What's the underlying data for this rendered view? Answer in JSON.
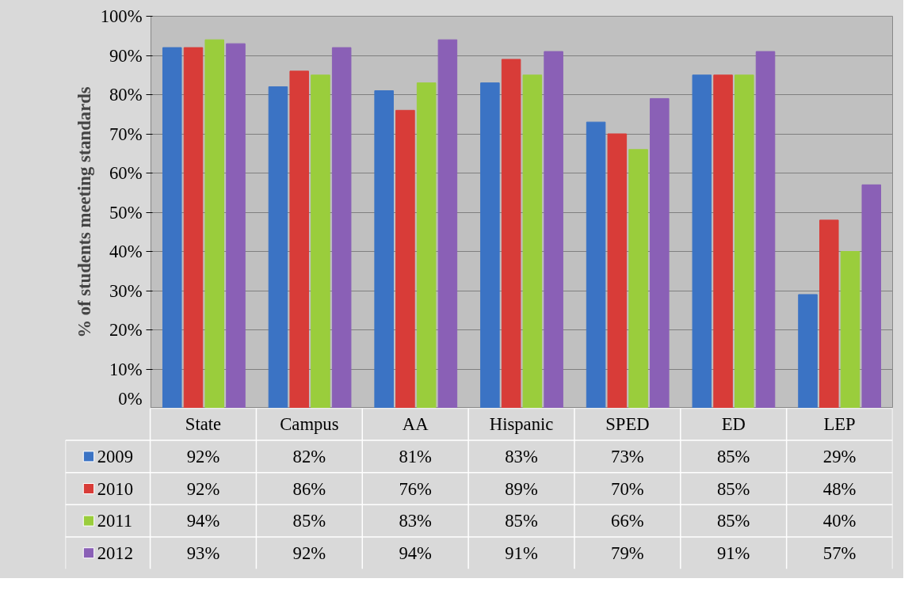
{
  "chart_data": {
    "type": "bar",
    "ylabel": "% of students meeting standards",
    "categories": [
      "State",
      "Campus",
      "AA",
      "Hispanic",
      "SPED",
      "ED",
      "LEP"
    ],
    "series": [
      {
        "name": "2009",
        "color": "#3b73c4",
        "values": [
          92,
          82,
          81,
          83,
          73,
          85,
          29
        ],
        "value_labels": [
          "92%",
          "82%",
          "81%",
          "83%",
          "73%",
          "85%",
          "29%"
        ]
      },
      {
        "name": "2010",
        "color": "#d83c38",
        "values": [
          92,
          86,
          76,
          89,
          70,
          85,
          48
        ],
        "value_labels": [
          "92%",
          "86%",
          "76%",
          "89%",
          "70%",
          "85%",
          "48%"
        ]
      },
      {
        "name": "2011",
        "color": "#9acd3c",
        "values": [
          94,
          85,
          83,
          85,
          66,
          85,
          40
        ],
        "value_labels": [
          "94%",
          "85%",
          "83%",
          "85%",
          "66%",
          "85%",
          "40%"
        ]
      },
      {
        "name": "2012",
        "color": "#8a60b6",
        "values": [
          93,
          92,
          94,
          91,
          79,
          91,
          57
        ],
        "value_labels": [
          "93%",
          "92%",
          "94%",
          "91%",
          "79%",
          "91%",
          "57%"
        ]
      }
    ],
    "ylim": [
      0,
      100
    ],
    "yticks": [
      {
        "value": 0,
        "label": "0%"
      },
      {
        "value": 10,
        "label": "10%"
      },
      {
        "value": 20,
        "label": "20%"
      },
      {
        "value": 30,
        "label": "30%"
      },
      {
        "value": 40,
        "label": "40%"
      },
      {
        "value": 50,
        "label": "50%"
      },
      {
        "value": 60,
        "label": "60%"
      },
      {
        "value": 70,
        "label": "70%"
      },
      {
        "value": 80,
        "label": "80%"
      },
      {
        "value": 90,
        "label": "90%"
      },
      {
        "value": 100,
        "label": "100%"
      }
    ],
    "grid": "y",
    "legend": "bottom",
    "data_labels": true
  }
}
